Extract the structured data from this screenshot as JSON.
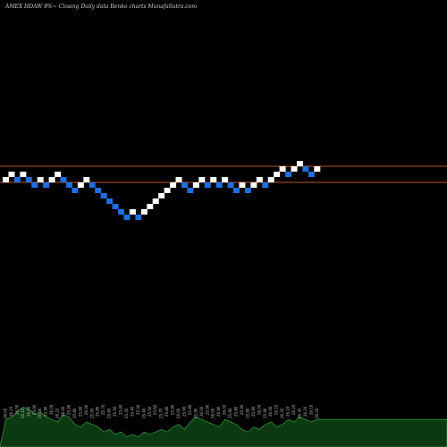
{
  "title": "AMEX  HDAW 8%~  Closing Daily data  Renko  charts MunafaSutra.com",
  "colors": {
    "background": "#000000",
    "up_brick": "#ffffff",
    "down_brick": "#1f6fe0",
    "level_line": "#b8562a",
    "volume_fill": "#0b3a12",
    "volume_line": "#2f8f3a",
    "volume_label": "#bdbdbd"
  },
  "chart_data": [
    {
      "type": "renko",
      "title": "AMEX  HDAW 8%~  Closing Daily data  Renko  charts MunafaSutra.com",
      "box_size": 0.1,
      "levels": [
        26.3,
        26.0
      ],
      "bricks": [
        {
          "dir": "up",
          "value": 26.0
        },
        {
          "dir": "up",
          "value": 26.1
        },
        {
          "dir": "down",
          "value": 26.0
        },
        {
          "dir": "up",
          "value": 26.1
        },
        {
          "dir": "down",
          "value": 26.0
        },
        {
          "dir": "down",
          "value": 25.9
        },
        {
          "dir": "up",
          "value": 26.0
        },
        {
          "dir": "down",
          "value": 25.9
        },
        {
          "dir": "up",
          "value": 26.0
        },
        {
          "dir": "up",
          "value": 26.1
        },
        {
          "dir": "down",
          "value": 26.0
        },
        {
          "dir": "down",
          "value": 25.9
        },
        {
          "dir": "down",
          "value": 25.8
        },
        {
          "dir": "up",
          "value": 25.9
        },
        {
          "dir": "up",
          "value": 26.0
        },
        {
          "dir": "down",
          "value": 25.9
        },
        {
          "dir": "down",
          "value": 25.8
        },
        {
          "dir": "down",
          "value": 25.7
        },
        {
          "dir": "down",
          "value": 25.6
        },
        {
          "dir": "down",
          "value": 25.5
        },
        {
          "dir": "down",
          "value": 25.4
        },
        {
          "dir": "down",
          "value": 25.3
        },
        {
          "dir": "up",
          "value": 25.4
        },
        {
          "dir": "down",
          "value": 25.3
        },
        {
          "dir": "up",
          "value": 25.4
        },
        {
          "dir": "up",
          "value": 25.5
        },
        {
          "dir": "up",
          "value": 25.6
        },
        {
          "dir": "up",
          "value": 25.7
        },
        {
          "dir": "up",
          "value": 25.8
        },
        {
          "dir": "up",
          "value": 25.9
        },
        {
          "dir": "up",
          "value": 26.0
        },
        {
          "dir": "down",
          "value": 25.9
        },
        {
          "dir": "down",
          "value": 25.8
        },
        {
          "dir": "up",
          "value": 25.9
        },
        {
          "dir": "up",
          "value": 26.0
        },
        {
          "dir": "down",
          "value": 25.9
        },
        {
          "dir": "up",
          "value": 26.0
        },
        {
          "dir": "down",
          "value": 25.9
        },
        {
          "dir": "up",
          "value": 26.0
        },
        {
          "dir": "down",
          "value": 25.9
        },
        {
          "dir": "down",
          "value": 25.8
        },
        {
          "dir": "up",
          "value": 25.9
        },
        {
          "dir": "down",
          "value": 25.8
        },
        {
          "dir": "up",
          "value": 25.9
        },
        {
          "dir": "up",
          "value": 26.0
        },
        {
          "dir": "down",
          "value": 25.9
        },
        {
          "dir": "up",
          "value": 26.0
        },
        {
          "dir": "up",
          "value": 26.1
        },
        {
          "dir": "up",
          "value": 26.2
        },
        {
          "dir": "down",
          "value": 26.1
        },
        {
          "dir": "up",
          "value": 26.2
        },
        {
          "dir": "up",
          "value": 26.3
        },
        {
          "dir": "down",
          "value": 26.2
        },
        {
          "dir": "down",
          "value": 26.1
        },
        {
          "dir": "up",
          "value": 26.2
        }
      ],
      "brick_labels": [
        "26.00",
        "26.10",
        "26.00",
        "26.10",
        "26.00",
        "25.90",
        "26.00",
        "25.90",
        "26.00",
        "26.10",
        "26.00",
        "25.90",
        "25.80",
        "25.90",
        "26.00",
        "25.90",
        "25.80",
        "25.70",
        "25.60",
        "25.50",
        "25.40",
        "25.30",
        "25.40",
        "25.30",
        "25.40",
        "25.50",
        "25.60",
        "25.70",
        "25.80",
        "25.90",
        "26.00",
        "25.90",
        "25.80",
        "25.90",
        "26.00",
        "25.90",
        "26.00",
        "25.90",
        "26.00",
        "25.90",
        "25.80",
        "25.90",
        "25.80",
        "25.90",
        "26.00",
        "25.90",
        "26.00",
        "26.10",
        "26.20",
        "26.10",
        "26.20",
        "26.30",
        "26.20",
        "26.10",
        "26.20"
      ],
      "volume": [
        0.55,
        0.6,
        0.7,
        0.8,
        0.75,
        0.65,
        0.7,
        0.6,
        0.55,
        0.5,
        0.65,
        0.6,
        0.45,
        0.4,
        0.5,
        0.45,
        0.4,
        0.3,
        0.35,
        0.25,
        0.3,
        0.2,
        0.25,
        0.2,
        0.3,
        0.25,
        0.3,
        0.35,
        0.3,
        0.4,
        0.45,
        0.35,
        0.5,
        0.6,
        0.55,
        0.5,
        0.45,
        0.4,
        0.55,
        0.5,
        0.45,
        0.35,
        0.3,
        0.4,
        0.35,
        0.45,
        0.5,
        0.4,
        0.45,
        0.55,
        0.5,
        0.6,
        0.55,
        0.5,
        0.55
      ],
      "grid": false,
      "legend": "none"
    }
  ]
}
